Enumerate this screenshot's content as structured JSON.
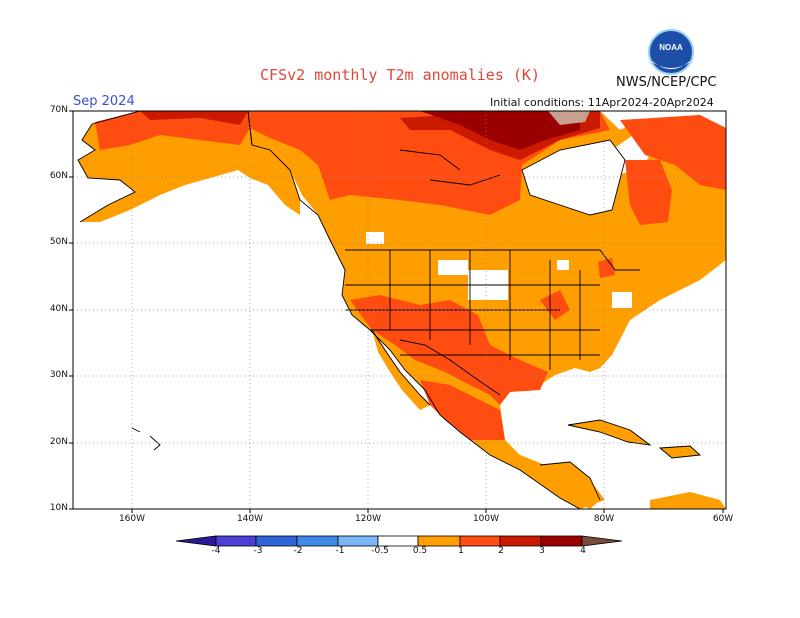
{
  "title": "CFSv2 monthly T2m anomalies (K)",
  "agency": "NWS/NCEP/CPC",
  "month": "Sep 2024",
  "initial_conditions": "Initial conditions: 11Apr2024-20Apr2024",
  "logo": {
    "name": "noaa-logo",
    "text": "NOAA"
  },
  "lat_labels": [
    "70N",
    "60N",
    "50N",
    "40N",
    "30N",
    "20N",
    "10N"
  ],
  "lon_labels": [
    "160W",
    "140W",
    "120W",
    "100W",
    "80W",
    "60W"
  ],
  "colorbar": {
    "labels": [
      "-4",
      "-3",
      "-2",
      "-1",
      "-0.5",
      "0.5",
      "1",
      "2",
      "3",
      "4"
    ],
    "colors": [
      "#2a1a9a",
      "#4b3fd4",
      "#2e66d8",
      "#3f8ae8",
      "#7ab6f5",
      "#ffffff",
      "#ff9e00",
      "#ff4d12",
      "#cc1a00",
      "#9a0000",
      "#c8a08f",
      "#7a4b3a"
    ]
  },
  "anomaly_colors": {
    "0.5-1": "#ff9e00",
    "1-2": "#ff4d12",
    "2-3": "#cc1a00",
    "3-4": "#9a0000"
  }
}
